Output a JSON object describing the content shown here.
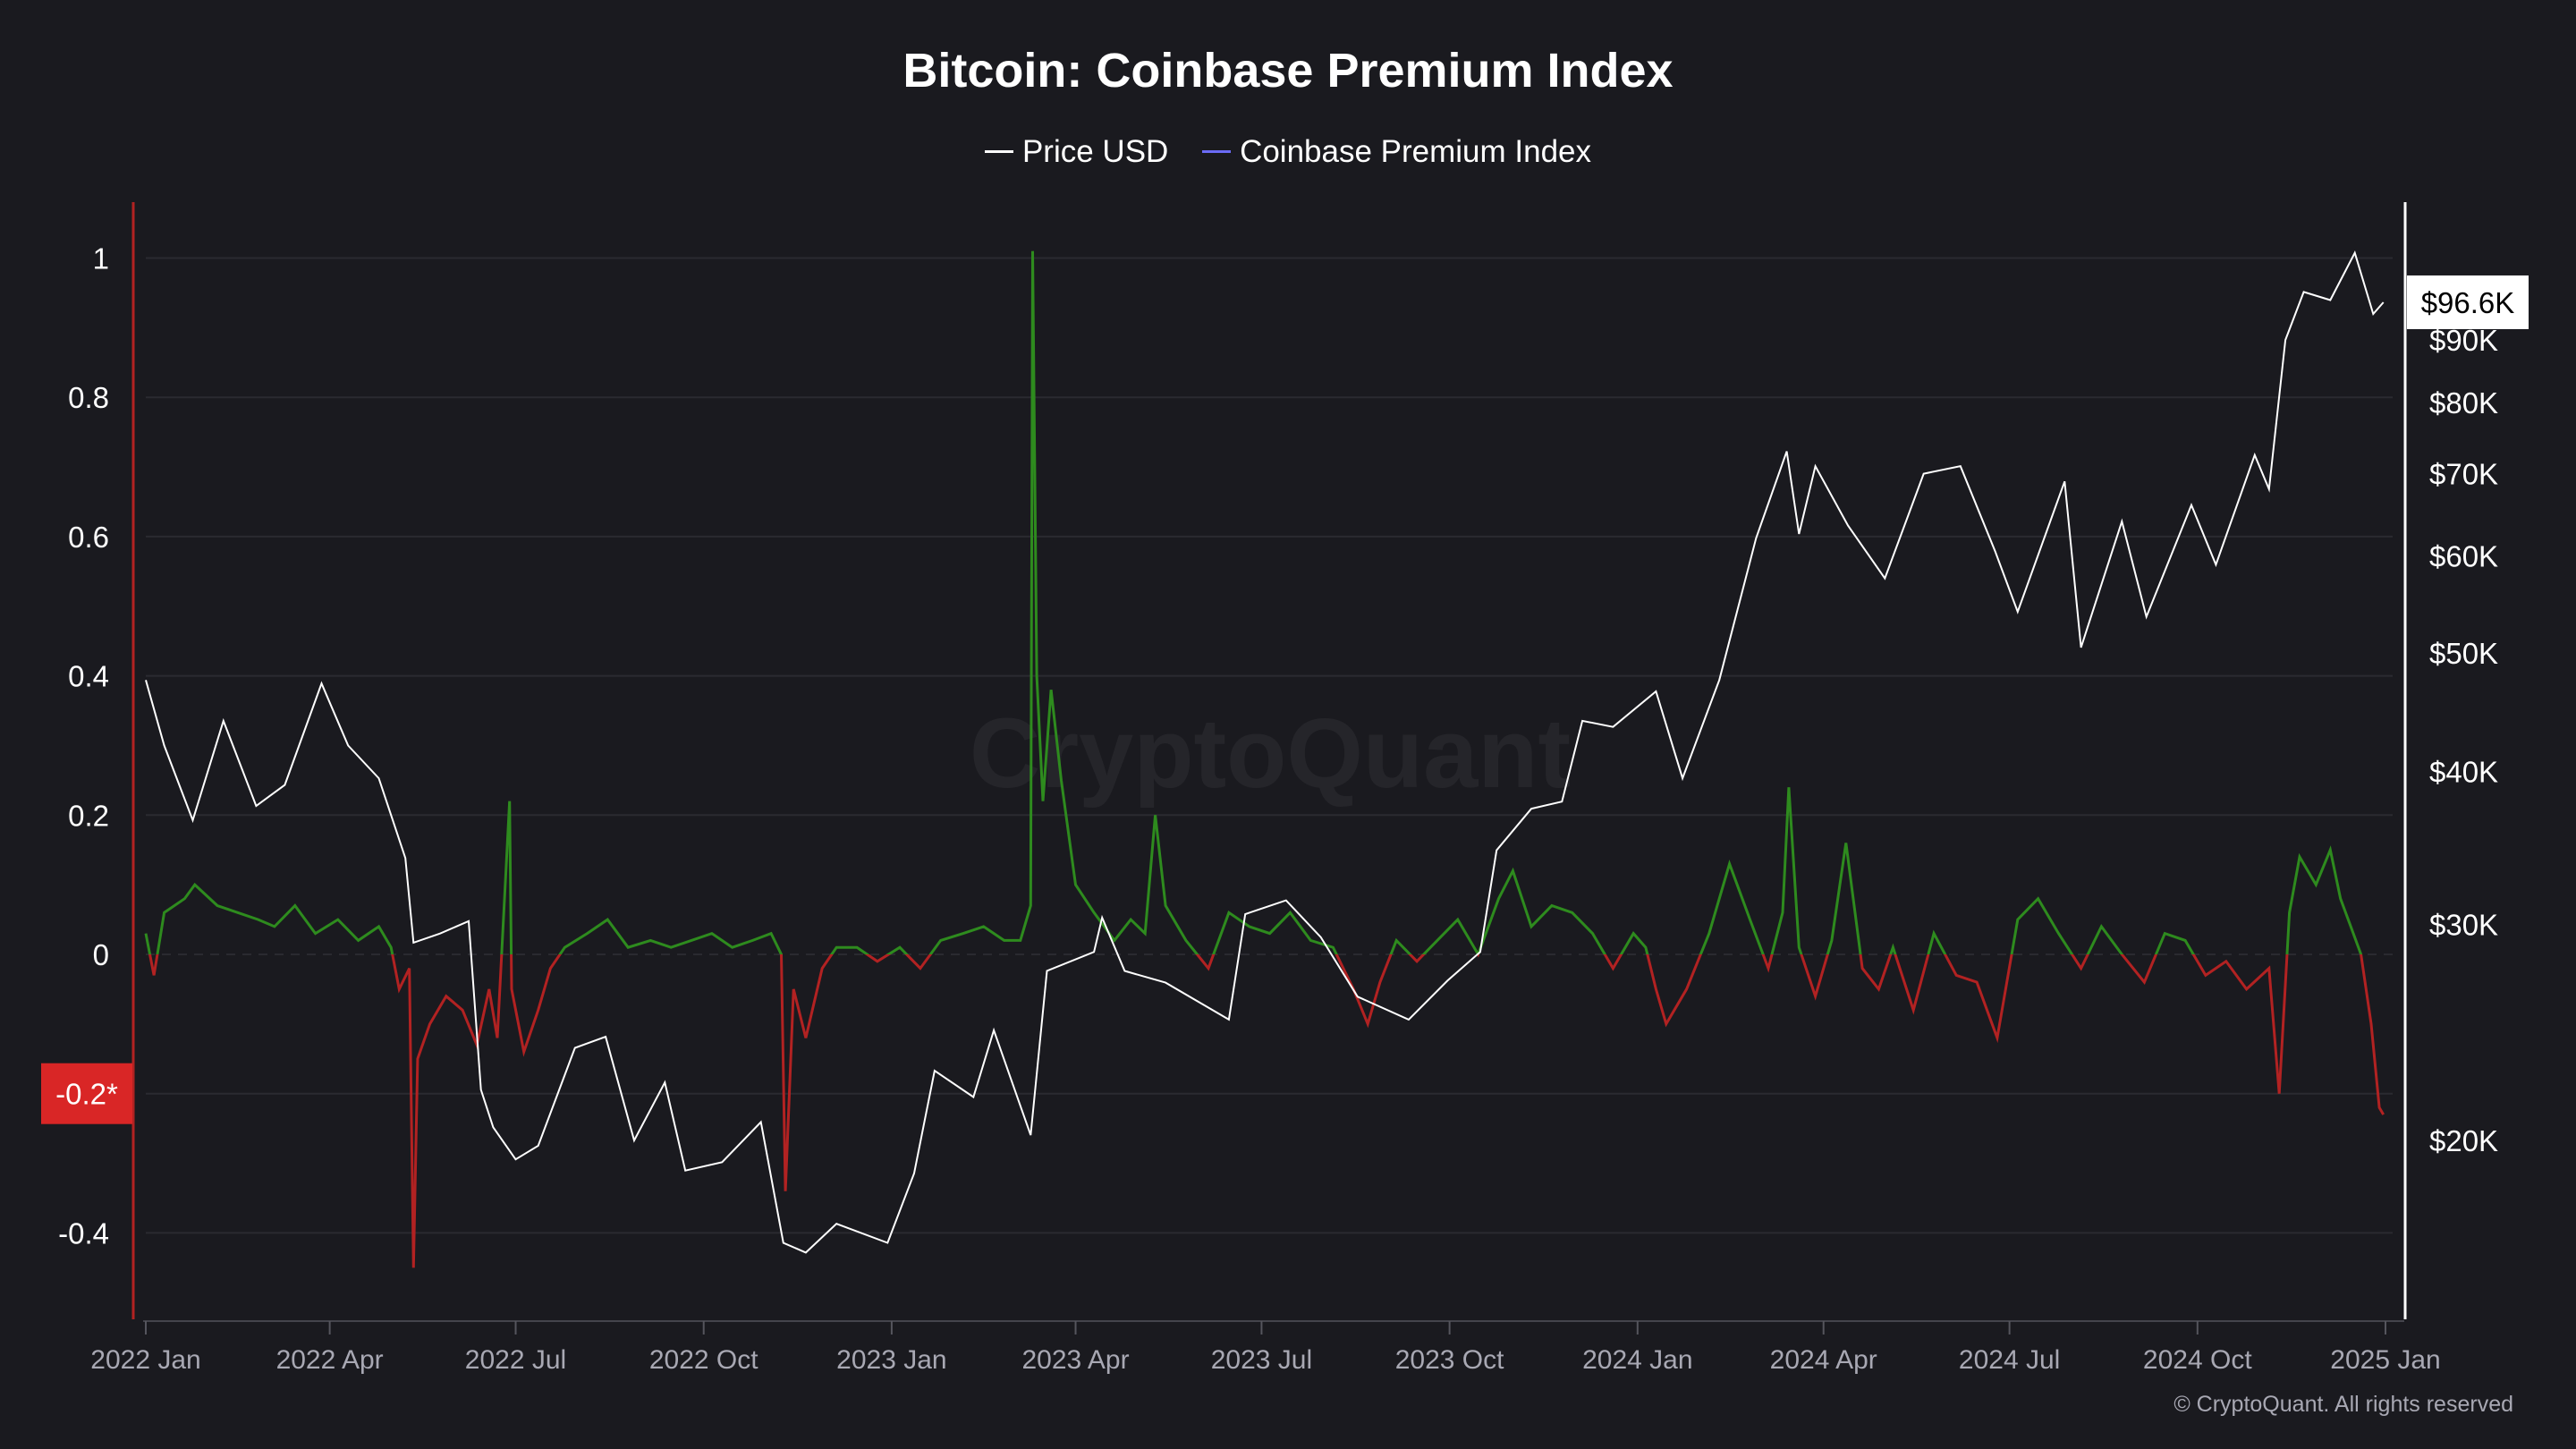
{
  "title": "Bitcoin: Coinbase Premium Index",
  "legend": [
    {
      "label": "Price USD",
      "color": "#ffffff"
    },
    {
      "label": "Coinbase Premium Index",
      "color": "#6b6bf5"
    }
  ],
  "watermark": "CryptoQuant",
  "copyright": "© CryptoQuant. All rights reserved",
  "colors": {
    "background": "#1a1a1f",
    "positive": "#2e8b1e",
    "negative": "#b22222",
    "price": "#ffffff",
    "left_axis": "#b22222"
  },
  "chart_data": {
    "type": "line",
    "title": "Bitcoin: Coinbase Premium Index",
    "x_ticks": [
      [
        "2022-01-01",
        "2022 Jan"
      ],
      [
        "2022-04-01",
        "2022 Apr"
      ],
      [
        "2022-07-01",
        "2022 Jul"
      ],
      [
        "2022-10-01",
        "2022 Oct"
      ],
      [
        "2023-01-01",
        "2023 Jan"
      ],
      [
        "2023-04-01",
        "2023 Apr"
      ],
      [
        "2023-07-01",
        "2023 Jul"
      ],
      [
        "2023-10-01",
        "2023 Oct"
      ],
      [
        "2024-01-01",
        "2024 Jan"
      ],
      [
        "2024-04-01",
        "2024 Apr"
      ],
      [
        "2024-07-01",
        "2024 Jul"
      ],
      [
        "2024-10-01",
        "2024 Oct"
      ],
      [
        "2025-01-01",
        "2025 Jan"
      ]
    ],
    "y_left": {
      "ticks": [
        [
          "1",
          1
        ],
        [
          "0.8",
          0.8
        ],
        [
          "0.6",
          0.6
        ],
        [
          "0.4",
          0.4
        ],
        [
          "0.2",
          0.2
        ],
        [
          "0",
          0
        ],
        [
          "-0.4",
          -0.4
        ]
      ],
      "range": [
        -0.52,
        1.1
      ],
      "last_label": "-0.2*",
      "last_value": -0.2
    },
    "y_right": {
      "scale": "log",
      "ticks": [
        [
          "$90K",
          90000
        ],
        [
          "$80K",
          80000
        ],
        [
          "$70K",
          70000
        ],
        [
          "$60K",
          60000
        ],
        [
          "$50K",
          50000
        ],
        [
          "$40K",
          40000
        ],
        [
          "$30K",
          30000
        ],
        [
          "$20K",
          20000
        ]
      ],
      "last_label": "$96.6K",
      "last_value": 96600
    },
    "series": [
      {
        "name": "Price USD",
        "points": [
          [
            "2022-01-01",
            47500
          ],
          [
            "2022-01-10",
            42000
          ],
          [
            "2022-01-24",
            36500
          ],
          [
            "2022-02-08",
            44000
          ],
          [
            "2022-02-24",
            37500
          ],
          [
            "2022-03-10",
            39000
          ],
          [
            "2022-03-28",
            47200
          ],
          [
            "2022-04-10",
            42000
          ],
          [
            "2022-04-25",
            39500
          ],
          [
            "2022-05-08",
            34000
          ],
          [
            "2022-05-12",
            29000
          ],
          [
            "2022-05-25",
            29500
          ],
          [
            "2022-06-08",
            30200
          ],
          [
            "2022-06-14",
            22000
          ],
          [
            "2022-06-20",
            20500
          ],
          [
            "2022-07-01",
            19300
          ],
          [
            "2022-07-12",
            19800
          ],
          [
            "2022-07-30",
            23800
          ],
          [
            "2022-08-14",
            24300
          ],
          [
            "2022-08-28",
            20000
          ],
          [
            "2022-09-12",
            22300
          ],
          [
            "2022-09-22",
            18900
          ],
          [
            "2022-10-10",
            19200
          ],
          [
            "2022-10-29",
            20700
          ],
          [
            "2022-11-09",
            16500
          ],
          [
            "2022-11-20",
            16200
          ],
          [
            "2022-12-05",
            17100
          ],
          [
            "2022-12-30",
            16500
          ],
          [
            "2023-01-12",
            18800
          ],
          [
            "2023-01-22",
            22800
          ],
          [
            "2023-02-10",
            21700
          ],
          [
            "2023-02-20",
            24600
          ],
          [
            "2023-03-10",
            20200
          ],
          [
            "2023-03-18",
            27500
          ],
          [
            "2023-04-10",
            28500
          ],
          [
            "2023-04-14",
            30400
          ],
          [
            "2023-04-25",
            27500
          ],
          [
            "2023-05-15",
            26900
          ],
          [
            "2023-06-15",
            25100
          ],
          [
            "2023-06-23",
            30600
          ],
          [
            "2023-07-13",
            31400
          ],
          [
            "2023-07-30",
            29300
          ],
          [
            "2023-08-17",
            26200
          ],
          [
            "2023-09-11",
            25100
          ],
          [
            "2023-09-30",
            27000
          ],
          [
            "2023-10-16",
            28500
          ],
          [
            "2023-10-24",
            34500
          ],
          [
            "2023-11-10",
            37300
          ],
          [
            "2023-11-25",
            37800
          ],
          [
            "2023-12-05",
            44000
          ],
          [
            "2023-12-20",
            43500
          ],
          [
            "2024-01-10",
            46500
          ],
          [
            "2024-01-23",
            39500
          ],
          [
            "2024-02-10",
            47500
          ],
          [
            "2024-02-28",
            62000
          ],
          [
            "2024-03-14",
            73000
          ],
          [
            "2024-03-20",
            62500
          ],
          [
            "2024-03-28",
            71000
          ],
          [
            "2024-04-13",
            63500
          ],
          [
            "2024-05-01",
            57500
          ],
          [
            "2024-05-20",
            70000
          ],
          [
            "2024-06-07",
            71000
          ],
          [
            "2024-06-24",
            60500
          ],
          [
            "2024-07-05",
            54000
          ],
          [
            "2024-07-28",
            69000
          ],
          [
            "2024-08-05",
            50500
          ],
          [
            "2024-08-25",
            64000
          ],
          [
            "2024-09-06",
            53500
          ],
          [
            "2024-09-28",
            66000
          ],
          [
            "2024-10-10",
            59000
          ],
          [
            "2024-10-29",
            72500
          ],
          [
            "2024-11-05",
            68000
          ],
          [
            "2024-11-13",
            90000
          ],
          [
            "2024-11-22",
            98500
          ],
          [
            "2024-12-05",
            97000
          ],
          [
            "2024-12-17",
            106000
          ],
          [
            "2024-12-26",
            94500
          ],
          [
            "2024-12-31",
            96600
          ]
        ]
      },
      {
        "name": "Coinbase Premium Index",
        "points": [
          [
            "2022-01-01",
            0.03
          ],
          [
            "2022-01-05",
            -0.03
          ],
          [
            "2022-01-10",
            0.06
          ],
          [
            "2022-01-20",
            0.08
          ],
          [
            "2022-01-25",
            0.1
          ],
          [
            "2022-02-05",
            0.07
          ],
          [
            "2022-02-15",
            0.06
          ],
          [
            "2022-02-25",
            0.05
          ],
          [
            "2022-03-05",
            0.04
          ],
          [
            "2022-03-15",
            0.07
          ],
          [
            "2022-03-25",
            0.03
          ],
          [
            "2022-04-05",
            0.05
          ],
          [
            "2022-04-15",
            0.02
          ],
          [
            "2022-04-25",
            0.04
          ],
          [
            "2022-05-01",
            0.01
          ],
          [
            "2022-05-05",
            -0.05
          ],
          [
            "2022-05-10",
            -0.02
          ],
          [
            "2022-05-12",
            -0.45
          ],
          [
            "2022-05-14",
            -0.15
          ],
          [
            "2022-05-20",
            -0.1
          ],
          [
            "2022-05-28",
            -0.06
          ],
          [
            "2022-06-05",
            -0.08
          ],
          [
            "2022-06-12",
            -0.13
          ],
          [
            "2022-06-18",
            -0.05
          ],
          [
            "2022-06-22",
            -0.12
          ],
          [
            "2022-06-28",
            0.22
          ],
          [
            "2022-06-29",
            -0.05
          ],
          [
            "2022-07-05",
            -0.14
          ],
          [
            "2022-07-12",
            -0.08
          ],
          [
            "2022-07-18",
            -0.02
          ],
          [
            "2022-07-25",
            0.01
          ],
          [
            "2022-08-05",
            0.03
          ],
          [
            "2022-08-15",
            0.05
          ],
          [
            "2022-08-25",
            0.01
          ],
          [
            "2022-09-05",
            0.02
          ],
          [
            "2022-09-15",
            0.01
          ],
          [
            "2022-09-25",
            0.02
          ],
          [
            "2022-10-05",
            0.03
          ],
          [
            "2022-10-15",
            0.01
          ],
          [
            "2022-10-25",
            0.02
          ],
          [
            "2022-11-03",
            0.03
          ],
          [
            "2022-11-08",
            0.0
          ],
          [
            "2022-11-10",
            -0.34
          ],
          [
            "2022-11-14",
            -0.05
          ],
          [
            "2022-11-20",
            -0.12
          ],
          [
            "2022-11-28",
            -0.02
          ],
          [
            "2022-12-05",
            0.01
          ],
          [
            "2022-12-15",
            0.01
          ],
          [
            "2022-12-25",
            -0.01
          ],
          [
            "2023-01-05",
            0.01
          ],
          [
            "2023-01-15",
            -0.02
          ],
          [
            "2023-01-25",
            0.02
          ],
          [
            "2023-02-05",
            0.03
          ],
          [
            "2023-02-15",
            0.04
          ],
          [
            "2023-02-25",
            0.02
          ],
          [
            "2023-03-05",
            0.02
          ],
          [
            "2023-03-10",
            0.07
          ],
          [
            "2023-03-11",
            1.01
          ],
          [
            "2023-03-13",
            0.4
          ],
          [
            "2023-03-16",
            0.22
          ],
          [
            "2023-03-20",
            0.38
          ],
          [
            "2023-03-25",
            0.25
          ],
          [
            "2023-04-01",
            0.1
          ],
          [
            "2023-04-10",
            0.06
          ],
          [
            "2023-04-20",
            0.02
          ],
          [
            "2023-04-28",
            0.05
          ],
          [
            "2023-05-05",
            0.03
          ],
          [
            "2023-05-10",
            0.2
          ],
          [
            "2023-05-15",
            0.07
          ],
          [
            "2023-05-25",
            0.02
          ],
          [
            "2023-06-05",
            -0.02
          ],
          [
            "2023-06-15",
            0.06
          ],
          [
            "2023-06-25",
            0.04
          ],
          [
            "2023-07-05",
            0.03
          ],
          [
            "2023-07-15",
            0.06
          ],
          [
            "2023-07-25",
            0.02
          ],
          [
            "2023-08-05",
            0.01
          ],
          [
            "2023-08-15",
            -0.05
          ],
          [
            "2023-08-22",
            -0.1
          ],
          [
            "2023-08-28",
            -0.04
          ],
          [
            "2023-09-05",
            0.02
          ],
          [
            "2023-09-15",
            -0.01
          ],
          [
            "2023-09-25",
            0.02
          ],
          [
            "2023-10-05",
            0.05
          ],
          [
            "2023-10-15",
            0.0
          ],
          [
            "2023-10-25",
            0.08
          ],
          [
            "2023-11-01",
            0.12
          ],
          [
            "2023-11-10",
            0.04
          ],
          [
            "2023-11-20",
            0.07
          ],
          [
            "2023-11-30",
            0.06
          ],
          [
            "2023-12-10",
            0.03
          ],
          [
            "2023-12-20",
            -0.02
          ],
          [
            "2023-12-30",
            0.03
          ],
          [
            "2024-01-05",
            0.01
          ],
          [
            "2024-01-10",
            -0.05
          ],
          [
            "2024-01-15",
            -0.1
          ],
          [
            "2024-01-25",
            -0.05
          ],
          [
            "2024-02-05",
            0.03
          ],
          [
            "2024-02-15",
            0.13
          ],
          [
            "2024-02-25",
            0.05
          ],
          [
            "2024-03-05",
            -0.02
          ],
          [
            "2024-03-12",
            0.06
          ],
          [
            "2024-03-15",
            0.24
          ],
          [
            "2024-03-20",
            0.01
          ],
          [
            "2024-03-28",
            -0.06
          ],
          [
            "2024-04-05",
            0.02
          ],
          [
            "2024-04-12",
            0.16
          ],
          [
            "2024-04-20",
            -0.02
          ],
          [
            "2024-04-28",
            -0.05
          ],
          [
            "2024-05-05",
            0.01
          ],
          [
            "2024-05-15",
            -0.08
          ],
          [
            "2024-05-25",
            0.03
          ],
          [
            "2024-06-05",
            -0.03
          ],
          [
            "2024-06-15",
            -0.04
          ],
          [
            "2024-06-25",
            -0.12
          ],
          [
            "2024-07-05",
            0.05
          ],
          [
            "2024-07-15",
            0.08
          ],
          [
            "2024-07-25",
            0.03
          ],
          [
            "2024-08-05",
            -0.02
          ],
          [
            "2024-08-15",
            0.04
          ],
          [
            "2024-08-25",
            0.0
          ],
          [
            "2024-09-05",
            -0.04
          ],
          [
            "2024-09-15",
            0.03
          ],
          [
            "2024-09-25",
            0.02
          ],
          [
            "2024-10-05",
            -0.03
          ],
          [
            "2024-10-15",
            -0.01
          ],
          [
            "2024-10-25",
            -0.05
          ],
          [
            "2024-11-05",
            -0.02
          ],
          [
            "2024-11-10",
            -0.2
          ],
          [
            "2024-11-15",
            0.06
          ],
          [
            "2024-11-20",
            0.14
          ],
          [
            "2024-11-28",
            0.1
          ],
          [
            "2024-12-05",
            0.15
          ],
          [
            "2024-12-10",
            0.08
          ],
          [
            "2024-12-15",
            0.04
          ],
          [
            "2024-12-20",
            0.0
          ],
          [
            "2024-12-25",
            -0.1
          ],
          [
            "2024-12-29",
            -0.22
          ],
          [
            "2024-12-31",
            -0.23
          ]
        ]
      }
    ]
  }
}
